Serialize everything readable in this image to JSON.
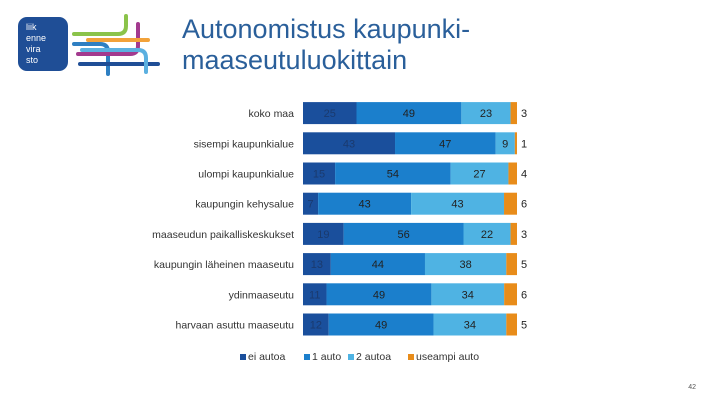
{
  "logo": {
    "lines": [
      "liik",
      "enne",
      "vira",
      "sto"
    ]
  },
  "title": "Autonomistus kaupunki-maaseutuluokittain",
  "page_number": "42",
  "chart_data": {
    "type": "bar",
    "stacked": true,
    "orientation": "horizontal",
    "percent_stacked": true,
    "categories": [
      "koko maa",
      "sisempi kaupunkialue",
      "ulompi kaupunkialue",
      "kaupungin kehysalue",
      "maaseudun paikalliskeskukset",
      "kaupungin läheinen maaseutu",
      "ydinmaaseutu",
      "harvaan asuttu maaseutu"
    ],
    "series": [
      {
        "name": "ei autoa",
        "color": "#1a4f9c",
        "values": [
          25,
          43,
          15,
          7,
          19,
          13,
          11,
          12
        ],
        "labels": [
          "25",
          "43",
          "15",
          "7",
          "19",
          "13",
          "11",
          "12"
        ]
      },
      {
        "name": "1 auto",
        "color": "#1b7fcc",
        "values": [
          49,
          47,
          54,
          43,
          56,
          44,
          49,
          49
        ],
        "labels": [
          "49",
          "47",
          "54",
          "43",
          "56",
          "44",
          "49",
          "49"
        ]
      },
      {
        "name": "2 autoa",
        "color": "#4fb3e3",
        "values": [
          23,
          9,
          27,
          43,
          22,
          38,
          34,
          34
        ],
        "labels": [
          "23",
          "9",
          "27",
          "43",
          "22",
          "38",
          "34",
          "34"
        ]
      },
      {
        "name": "useampi auto",
        "color": "#e88c1a",
        "values": [
          3,
          1,
          4,
          6,
          3,
          5,
          6,
          5
        ],
        "labels": [
          "3",
          "1",
          "4",
          "6",
          "3",
          "5",
          "6",
          "5"
        ]
      }
    ],
    "legend_position": "bottom",
    "grid": false
  }
}
